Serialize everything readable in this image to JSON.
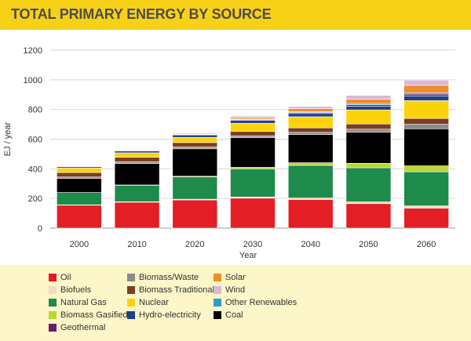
{
  "page": {
    "title": "TOTAL PRIMARY ENERGY BY SOURCE"
  },
  "chart_data": {
    "type": "bar",
    "stacked": true,
    "title": "",
    "xlabel": "Year",
    "ylabel": "EJ / year",
    "ylim": [
      0,
      1200
    ],
    "yticks": [
      0,
      200,
      400,
      600,
      800,
      1000,
      1200
    ],
    "grid": "horizontal",
    "legend_position": "bottom",
    "categories": [
      "2000",
      "2010",
      "2020",
      "2030",
      "2040",
      "2050",
      "2060"
    ],
    "series": [
      {
        "name": "Oil",
        "color": "#e31e24",
        "values": [
          155,
          175,
          190,
          202,
          193,
          165,
          135
        ]
      },
      {
        "name": "Biofuels",
        "color": "#f2dcc0",
        "values": [
          2,
          3,
          5,
          8,
          10,
          12,
          15
        ]
      },
      {
        "name": "Natural Gas",
        "color": "#1e8a4c",
        "values": [
          83,
          112,
          150,
          190,
          220,
          230,
          230
        ]
      },
      {
        "name": "Biomass Gasified",
        "color": "#bcd631",
        "values": [
          0,
          1,
          5,
          10,
          18,
          30,
          40
        ]
      },
      {
        "name": "Coal",
        "color": "#000000",
        "values": [
          95,
          145,
          185,
          200,
          190,
          210,
          250
        ]
      },
      {
        "name": "Biomass/Waste",
        "color": "#8c8c8c",
        "values": [
          10,
          12,
          12,
          12,
          15,
          20,
          30
        ]
      },
      {
        "name": "Biomass Traditional",
        "color": "#7b3f1e",
        "values": [
          30,
          30,
          30,
          30,
          30,
          35,
          40
        ]
      },
      {
        "name": "Nuclear",
        "color": "#fcd20b",
        "values": [
          30,
          30,
          35,
          55,
          75,
          95,
          120
        ]
      },
      {
        "name": "Hydro-electricity",
        "color": "#1f3f8f",
        "values": [
          10,
          13,
          16,
          20,
          22,
          25,
          30
        ]
      },
      {
        "name": "Geothermal",
        "color": "#6a1b6e",
        "values": [
          1,
          2,
          3,
          5,
          7,
          10,
          13
        ]
      },
      {
        "name": "Other Renewables",
        "color": "#2a9fc9",
        "values": [
          0,
          1,
          2,
          3,
          5,
          8,
          10
        ]
      },
      {
        "name": "Solar",
        "color": "#f28c28",
        "values": [
          0,
          1,
          5,
          10,
          20,
          30,
          50
        ]
      },
      {
        "name": "Wind",
        "color": "#d9b8d6",
        "values": [
          0,
          2,
          5,
          10,
          15,
          25,
          35
        ]
      }
    ]
  },
  "legend": [
    {
      "label": "Oil",
      "color": "#e31e24"
    },
    {
      "label": "Biomass/Waste",
      "color": "#8c8c8c"
    },
    {
      "label": "Solar",
      "color": "#f28c28"
    },
    {
      "label": "Biofuels",
      "color": "#f2dcc0"
    },
    {
      "label": "Biomass Traditional",
      "color": "#7b3f1e"
    },
    {
      "label": "Wind",
      "color": "#d9b8d6"
    },
    {
      "label": "Natural Gas",
      "color": "#1e8a4c"
    },
    {
      "label": "Nuclear",
      "color": "#fcd20b"
    },
    {
      "label": "Other Renewables",
      "color": "#2a9fc9"
    },
    {
      "label": "Biomass Gasified",
      "color": "#bcd631"
    },
    {
      "label": "Hydro-electricity",
      "color": "#1f3f8f"
    },
    {
      "label": "Coal",
      "color": "#000000"
    },
    {
      "label": "Geothermal",
      "color": "#6a1b6e"
    }
  ]
}
